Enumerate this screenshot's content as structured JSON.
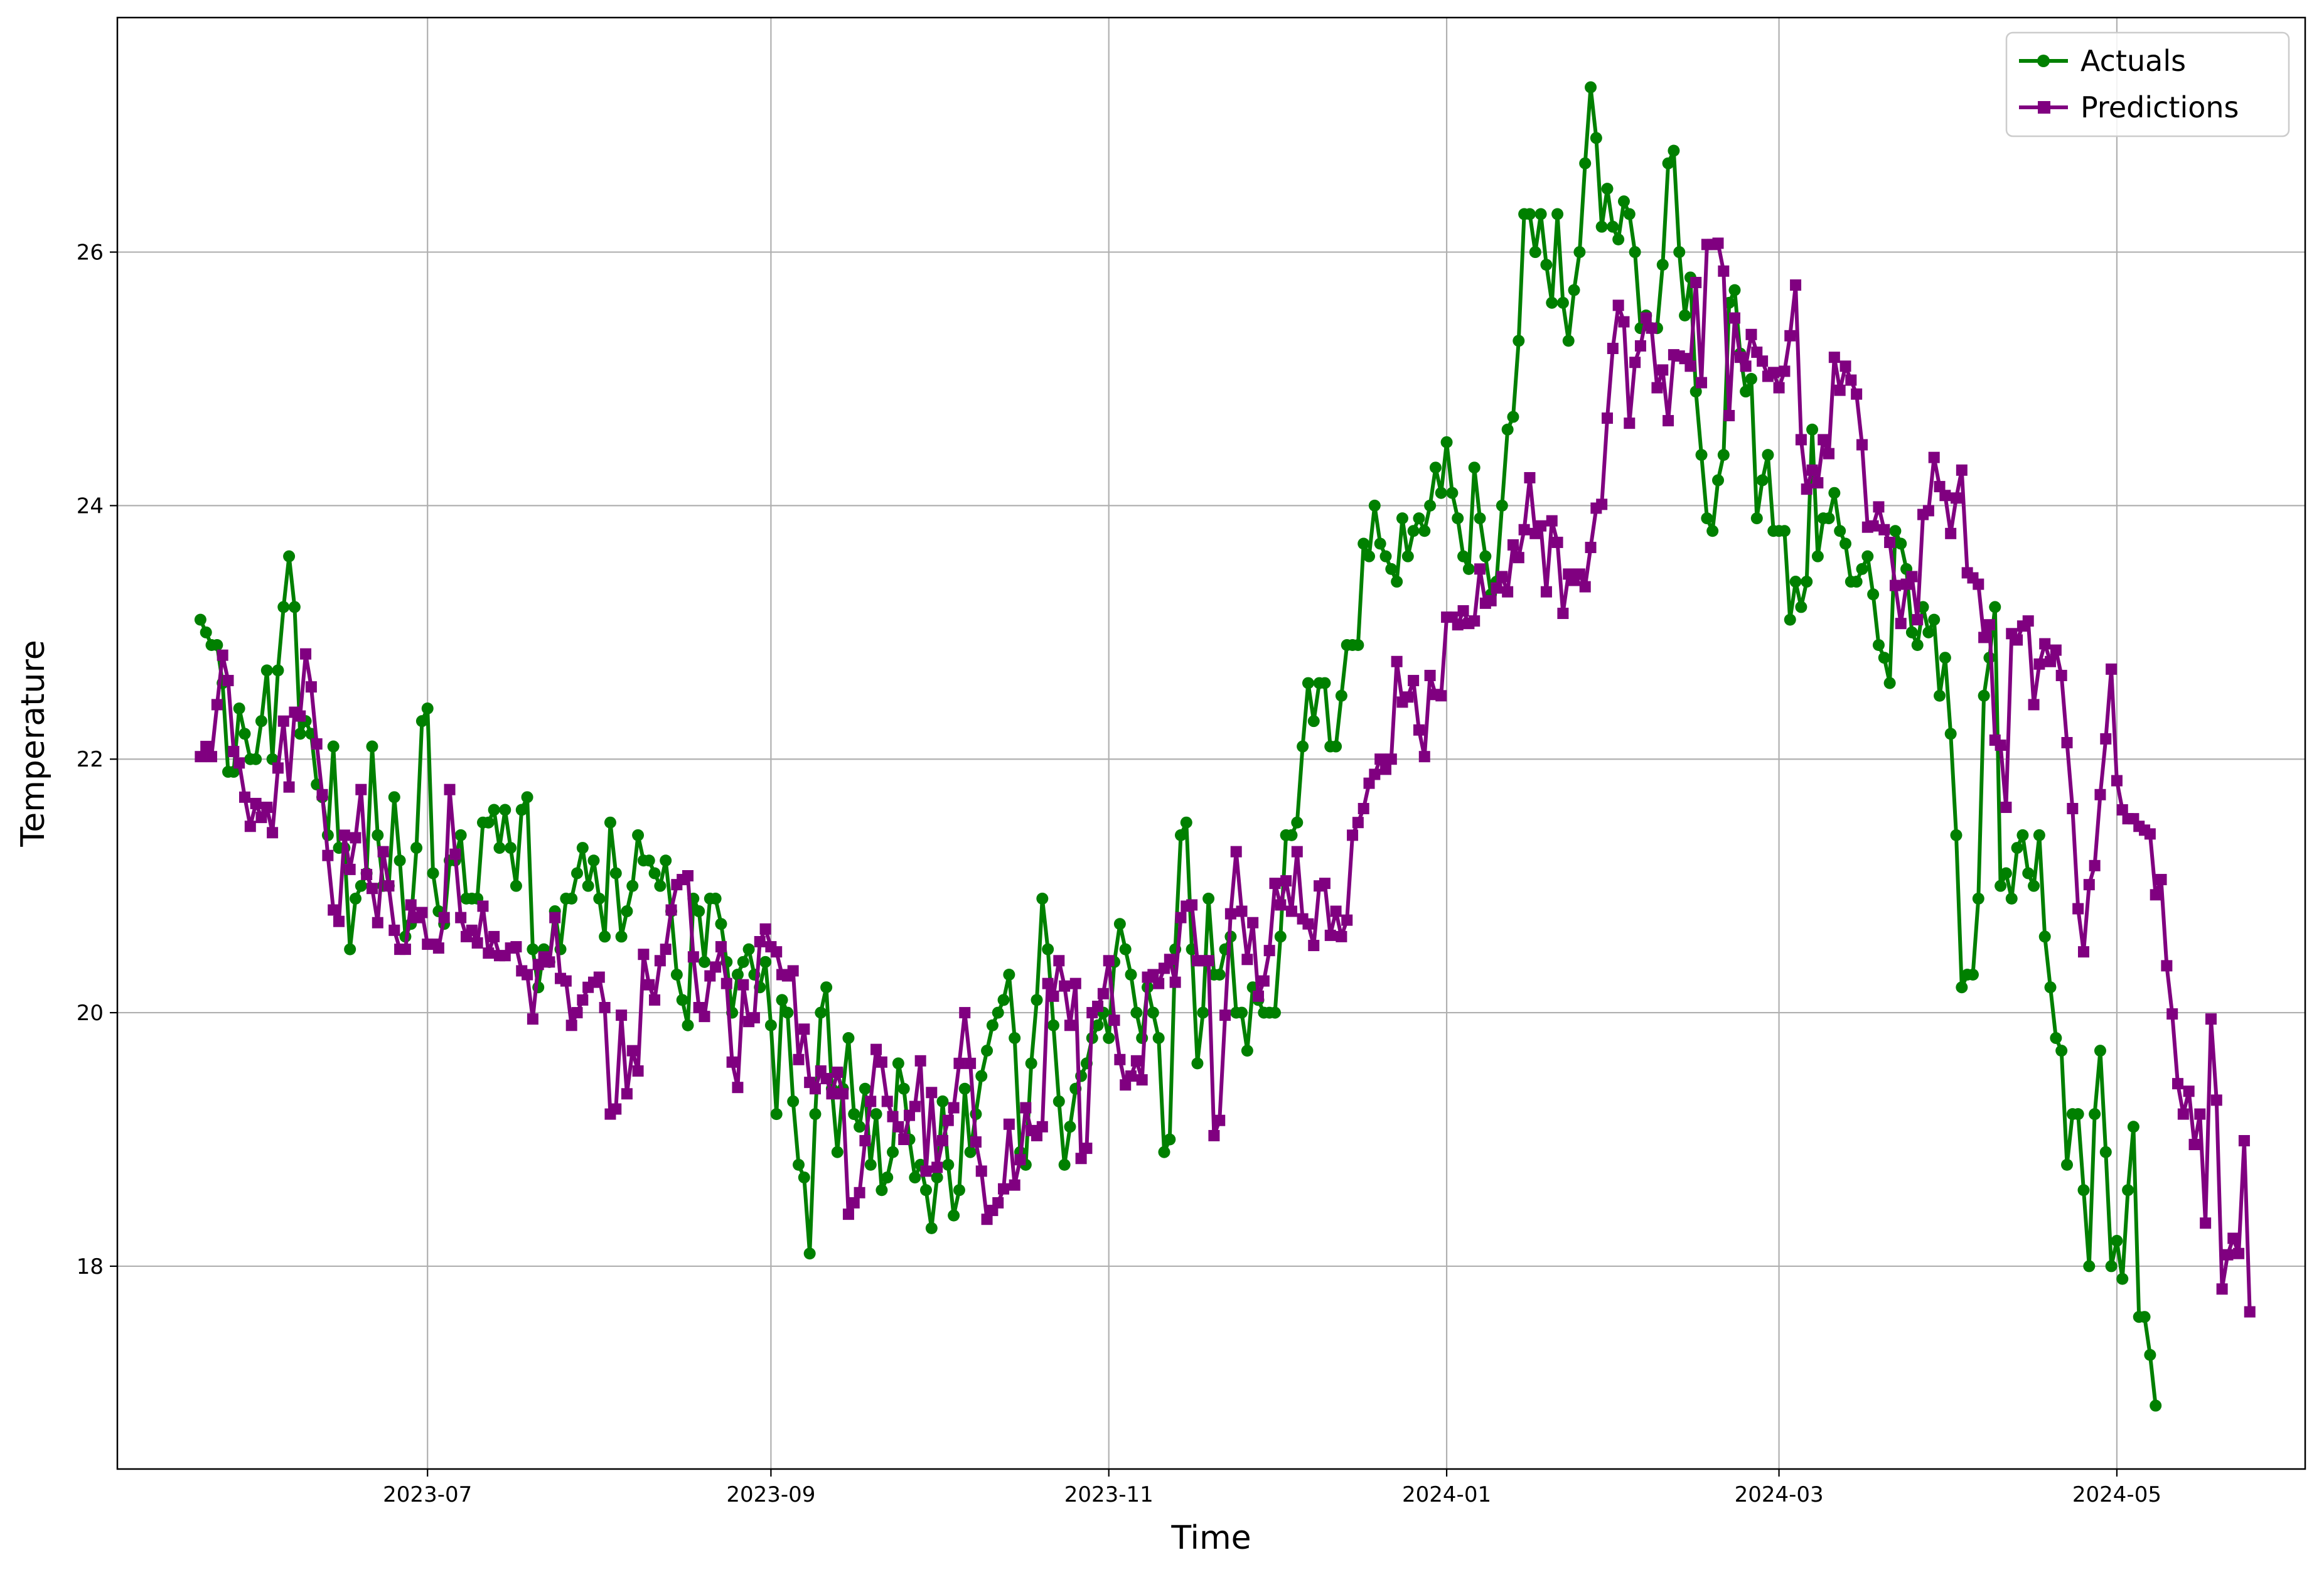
{
  "chart_data": {
    "type": "line",
    "xlabel": "Time",
    "ylabel": "Temperature",
    "x_ticks": [
      "2023-07-01",
      "2023-09-01",
      "2023-11-01",
      "2024-01-01",
      "2024-03-01",
      "2024-05-01"
    ],
    "x_tick_labels": [
      "2023-07",
      "2023-09",
      "2023-11",
      "2024-01",
      "2024-03",
      "2024-05"
    ],
    "y_ticks": [
      18,
      20,
      22,
      24,
      26
    ],
    "xlim": [
      "2023-05-06",
      "2024-06-04"
    ],
    "ylim": [
      16.4,
      27.85
    ],
    "grid": true,
    "legend_position": "top-right",
    "x_start": "2023-05-21",
    "x_step_days": 1,
    "series": [
      {
        "name": "Actuals",
        "color": "#008000",
        "marker": "circle",
        "values": [
          23.1,
          23.0,
          22.9,
          22.9,
          22.6,
          21.9,
          21.9,
          22.4,
          22.2,
          22.0,
          22.0,
          22.3,
          22.7,
          22.0,
          22.7,
          23.2,
          23.6,
          23.2,
          22.2,
          22.3,
          22.2,
          21.8,
          21.7,
          21.4,
          22.1,
          21.3,
          21.3,
          20.5,
          20.9,
          21.0,
          21.1,
          22.1,
          21.4,
          21.0,
          21.0,
          21.7,
          21.2,
          20.6,
          20.7,
          21.3,
          22.3,
          22.4,
          21.1,
          20.8,
          20.7,
          21.2,
          21.2,
          21.4,
          20.9,
          20.9,
          20.9,
          21.5,
          21.5,
          21.6,
          21.3,
          21.6,
          21.3,
          21.0,
          21.6,
          21.7,
          20.5,
          20.2,
          20.5,
          20.4,
          20.8,
          20.5,
          20.9,
          20.9,
          21.1,
          21.3,
          21.0,
          21.2,
          20.9,
          20.6,
          21.5,
          21.1,
          20.6,
          20.8,
          21.0,
          21.4,
          21.2,
          21.2,
          21.1,
          21.0,
          21.2,
          20.8,
          20.3,
          20.1,
          19.9,
          20.9,
          20.8,
          20.4,
          20.9,
          20.9,
          20.7,
          20.4,
          20.0,
          20.3,
          20.4,
          20.5,
          20.3,
          20.2,
          20.4,
          19.9,
          19.2,
          20.1,
          20.0,
          19.3,
          18.8,
          18.7,
          18.1,
          19.2,
          20.0,
          20.2,
          19.4,
          18.9,
          19.4,
          19.8,
          19.2,
          19.1,
          19.4,
          18.8,
          19.2,
          18.6,
          18.7,
          18.9,
          19.6,
          19.4,
          19.0,
          18.7,
          18.8,
          18.6,
          18.3,
          18.7,
          19.3,
          18.8,
          18.4,
          18.6,
          19.4,
          18.9,
          19.2,
          19.5,
          19.7,
          19.9,
          20.0,
          20.1,
          20.3,
          19.8,
          18.9,
          18.8,
          19.6,
          20.1,
          20.9,
          20.5,
          19.9,
          19.3,
          18.8,
          19.1,
          19.4,
          19.5,
          19.6,
          19.8,
          19.9,
          20.0,
          19.8,
          20.4,
          20.7,
          20.5,
          20.3,
          20.0,
          19.8,
          20.2,
          20.0,
          19.8,
          18.9,
          19.0,
          20.5,
          21.4,
          21.5,
          20.5,
          19.6,
          20.0,
          20.9,
          20.3,
          20.3,
          20.5,
          20.6,
          20.0,
          20.0,
          19.7,
          20.2,
          20.1,
          20.0,
          20.0,
          20.0,
          20.6,
          21.4,
          21.4,
          21.5,
          22.1,
          22.6,
          22.3,
          22.6,
          22.6,
          22.1,
          22.1,
          22.5,
          22.9,
          22.9,
          22.9,
          23.7,
          23.6,
          24.0,
          23.7,
          23.6,
          23.5,
          23.4,
          23.9,
          23.6,
          23.8,
          23.9,
          23.8,
          24.0,
          24.3,
          24.1,
          24.5,
          24.1,
          23.9,
          23.6,
          23.5,
          24.3,
          23.9,
          23.6,
          23.3,
          23.4,
          24.0,
          24.6,
          24.7,
          25.3,
          26.3,
          26.3,
          26.0,
          26.3,
          25.9,
          25.6,
          26.3,
          25.6,
          25.3,
          25.7,
          26.0,
          26.7,
          27.3,
          26.9,
          26.2,
          26.5,
          26.2,
          26.1,
          26.4,
          26.3,
          26.0,
          25.4,
          25.5,
          25.4,
          25.4,
          25.9,
          26.7,
          26.8,
          26.0,
          25.5,
          25.8,
          24.9,
          24.4,
          23.9,
          23.8,
          24.2,
          24.4,
          25.6,
          25.7,
          25.2,
          24.9,
          25.0,
          23.9,
          24.2,
          24.4,
          23.8,
          23.8,
          23.8,
          23.1,
          23.4,
          23.2,
          23.4,
          24.6,
          23.6,
          23.9,
          23.9,
          24.1,
          23.8,
          23.7,
          23.4,
          23.4,
          23.5,
          23.6,
          23.3,
          22.9,
          22.8,
          22.6,
          23.8,
          23.7,
          23.5,
          23.0,
          22.9,
          23.2,
          23.0,
          23.1,
          22.5,
          22.8,
          22.2,
          21.4,
          20.2,
          20.3,
          20.3,
          20.9,
          22.5,
          22.8,
          23.2,
          21.0,
          21.1,
          20.9,
          21.3,
          21.4,
          21.1,
          21.0,
          21.4,
          20.6,
          20.2,
          19.8,
          19.7,
          18.8,
          19.2,
          19.2,
          18.6,
          18.0,
          19.2,
          19.7,
          18.9,
          18.0,
          18.2,
          17.9,
          18.6,
          19.1,
          17.6,
          17.6,
          17.3,
          16.9
        ]
      },
      {
        "name": "Predictions",
        "color": "#800080",
        "marker": "square",
        "values": [
          22.02,
          22.1,
          22.02,
          22.43,
          22.82,
          22.62,
          22.06,
          21.97,
          21.7,
          21.47,
          21.65,
          21.54,
          21.62,
          21.42,
          21.93,
          22.3,
          21.78,
          22.37,
          22.34,
          22.83,
          22.57,
          22.12,
          21.72,
          21.24,
          20.81,
          20.72,
          21.4,
          21.13,
          21.38,
          21.76,
          21.09,
          20.98,
          20.71,
          21.27,
          21.0,
          20.65,
          20.5,
          20.5,
          20.85,
          20.75,
          20.79,
          20.54,
          20.54,
          20.51,
          20.75,
          21.76,
          21.25,
          20.75,
          20.6,
          20.65,
          20.55,
          20.84,
          20.47,
          20.6,
          20.45,
          20.45,
          20.51,
          20.52,
          20.33,
          20.3,
          19.95,
          20.38,
          20.44,
          20.4,
          20.75,
          20.27,
          20.25,
          19.9,
          20.0,
          20.1,
          20.2,
          20.24,
          20.28,
          20.04,
          19.2,
          19.24,
          19.98,
          19.36,
          19.7,
          19.54,
          20.46,
          20.22,
          20.1,
          20.41,
          20.5,
          20.81,
          21.01,
          21.05,
          21.08,
          20.44,
          20.04,
          19.97,
          20.29,
          20.36,
          20.52,
          20.23,
          19.61,
          19.41,
          20.22,
          19.93,
          19.96,
          20.56,
          20.66,
          20.52,
          20.48,
          20.3,
          20.29,
          20.33,
          19.63,
          19.87,
          19.45,
          19.4,
          19.54,
          19.48,
          19.36,
          19.53,
          19.36,
          18.41,
          18.5,
          18.58,
          18.99,
          19.3,
          19.71,
          19.61,
          19.3,
          19.18,
          19.1,
          19.0,
          19.19,
          19.26,
          19.62,
          18.75,
          19.37,
          18.78,
          18.99,
          19.15,
          19.25,
          19.6,
          20.0,
          19.6,
          18.98,
          18.75,
          18.37,
          18.44,
          18.5,
          18.61,
          19.12,
          18.64,
          18.84,
          19.25,
          19.07,
          19.03,
          19.1,
          20.23,
          20.13,
          20.41,
          20.21,
          19.9,
          20.23,
          18.85,
          18.93,
          20.0,
          20.05,
          20.15,
          20.41,
          19.94,
          19.63,
          19.43,
          19.5,
          19.62,
          19.47,
          20.28,
          20.3,
          20.23,
          20.35,
          20.42,
          20.24,
          20.75,
          20.84,
          20.85,
          20.41,
          20.41,
          20.41,
          19.03,
          19.15,
          19.98,
          20.78,
          21.27,
          20.8,
          20.42,
          20.71,
          20.13,
          20.25,
          20.49,
          21.02,
          20.85,
          21.04,
          20.8,
          21.27,
          20.74,
          20.7,
          20.53,
          21.0,
          21.02,
          20.61,
          20.8,
          20.6,
          20.73,
          21.4,
          21.5,
          21.61,
          21.81,
          21.88,
          22.0,
          21.92,
          22.0,
          22.77,
          22.45,
          22.49,
          22.62,
          22.23,
          22.02,
          22.66,
          22.51,
          22.5,
          23.12,
          23.12,
          23.06,
          23.17,
          23.07,
          23.09,
          23.5,
          23.23,
          23.25,
          23.35,
          23.44,
          23.32,
          23.69,
          23.59,
          23.81,
          24.22,
          23.78,
          23.84,
          23.32,
          23.88,
          23.71,
          23.15,
          23.46,
          23.41,
          23.46,
          23.36,
          23.67,
          23.98,
          24.01,
          24.69,
          25.24,
          25.58,
          25.45,
          24.65,
          25.13,
          25.26,
          25.48,
          25.4,
          24.93,
          25.07,
          24.67,
          25.19,
          25.18,
          25.16,
          25.1,
          25.76,
          24.97,
          26.06,
          26.06,
          26.07,
          25.85,
          24.71,
          25.48,
          25.17,
          25.1,
          25.35,
          25.21,
          25.14,
          25.02,
          25.05,
          24.93,
          25.06,
          25.34,
          25.74,
          24.52,
          24.13,
          24.28,
          24.18,
          24.52,
          24.41,
          25.17,
          24.91,
          25.1,
          24.99,
          24.88,
          24.48,
          23.83,
          23.84,
          23.99,
          23.81,
          23.71,
          23.37,
          23.07,
          23.38,
          23.44,
          23.1,
          23.93,
          23.96,
          24.38,
          24.15,
          24.08,
          23.78,
          24.06,
          24.28,
          23.47,
          23.43,
          23.38,
          22.96,
          23.06,
          22.15,
          22.11,
          21.62,
          22.99,
          22.94,
          23.05,
          23.09,
          22.43,
          22.75,
          22.91,
          22.77,
          22.86,
          22.66,
          22.13,
          21.61,
          20.82,
          20.48,
          21.01,
          21.16,
          21.72,
          22.16,
          22.71,
          21.83,
          21.6,
          21.53,
          21.53,
          21.47,
          21.44,
          21.41,
          20.93,
          21.05,
          20.37,
          19.99,
          19.44,
          19.2,
          19.38,
          18.96,
          19.2,
          18.34,
          19.95,
          19.31,
          17.82,
          18.09,
          18.22,
          18.1,
          18.99,
          17.64
        ]
      }
    ]
  }
}
